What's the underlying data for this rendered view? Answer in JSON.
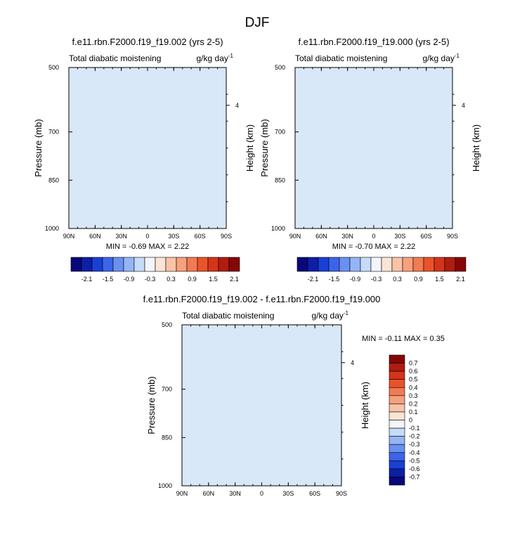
{
  "figure": {
    "title": "DJF"
  },
  "colors": {
    "abs_scale": [
      "#08087a",
      "#0c1fa6",
      "#1a3fd3",
      "#3c64e8",
      "#6990f0",
      "#94b5f5",
      "#c6dbf7",
      "#f2f5fb",
      "#fbe4d3",
      "#f9c3a6",
      "#f6a07d",
      "#f27a54",
      "#ea5329",
      "#d5341a",
      "#b01c10",
      "#860606"
    ],
    "diff_scale": [
      "#08087a",
      "#0c1fa6",
      "#1a3fd3",
      "#3c64e8",
      "#6990f0",
      "#94b5f5",
      "#c6dbf7",
      "#f2f5fb",
      "#fbe4d3",
      "#f9c3a6",
      "#f6a07d",
      "#f27a54",
      "#ea5329",
      "#d5341a",
      "#b01c10",
      "#860606"
    ]
  },
  "chart_data": [
    {
      "type": "heatmap",
      "title": "f.e11.rbn.F2000.f19_f19.002 (yrs 2-5)",
      "left_label": "Total diabatic moistening",
      "units_base": "g/kg day",
      "units_exp": "-1",
      "ylabel": "Pressure (mb)",
      "ylabel_right": "Height (km)",
      "x_ticks": [
        "90N",
        "60N",
        "30N",
        "0",
        "30S",
        "60S",
        "90S"
      ],
      "y_ticks": [
        "500",
        "700",
        "850",
        "1000"
      ],
      "right_ticks": [
        "4"
      ],
      "stats": "MIN =  -0.69   MAX =  2.22",
      "min": -0.69,
      "max": 2.22,
      "colorbar_labels": [
        "-2.1",
        "-1.5",
        "-0.9",
        "-0.3",
        "0.3",
        "0.9",
        "1.5",
        "2.1"
      ]
    },
    {
      "type": "heatmap",
      "title": "f.e11.rbn.F2000.f19_f19.000 (yrs 2-5)",
      "left_label": "Total diabatic moistening",
      "units_base": "g/kg day",
      "units_exp": "-1",
      "ylabel": "Pressure (mb)",
      "ylabel_right": "Height (km)",
      "x_ticks": [
        "90N",
        "60N",
        "30N",
        "0",
        "30S",
        "60S",
        "90S"
      ],
      "y_ticks": [
        "500",
        "700",
        "850",
        "1000"
      ],
      "right_ticks": [
        "4"
      ],
      "stats": "MIN =  -0.70   MAX =  2.22",
      "min": -0.7,
      "max": 2.22,
      "colorbar_labels": [
        "-2.1",
        "-1.5",
        "-0.9",
        "-0.3",
        "0.3",
        "0.9",
        "1.5",
        "2.1"
      ]
    },
    {
      "type": "heatmap",
      "title": "f.e11.rbn.F2000.f19_f19.002 - f.e11.rbn.F2000.f19_f19.000",
      "left_label": "Total diabatic moistening",
      "units_base": "g/kg day",
      "units_exp": "-1",
      "ylabel": "Pressure (mb)",
      "ylabel_right": "Height (km)",
      "x_ticks": [
        "90N",
        "60N",
        "30N",
        "0",
        "30S",
        "60S",
        "90S"
      ],
      "y_ticks": [
        "500",
        "700",
        "850",
        "1000"
      ],
      "right_ticks": [
        "4"
      ],
      "stats": "MIN =  -0.11   MAX =  0.35",
      "min": -0.11,
      "max": 0.35,
      "colorbar_labels": [
        "0.7",
        "0.6",
        "0.5",
        "0.4",
        "0.3",
        "0.2",
        "0.1",
        "0",
        "-0.1",
        "-0.2",
        "-0.3",
        "-0.4",
        "-0.5",
        "-0.6",
        "-0.7"
      ]
    }
  ]
}
